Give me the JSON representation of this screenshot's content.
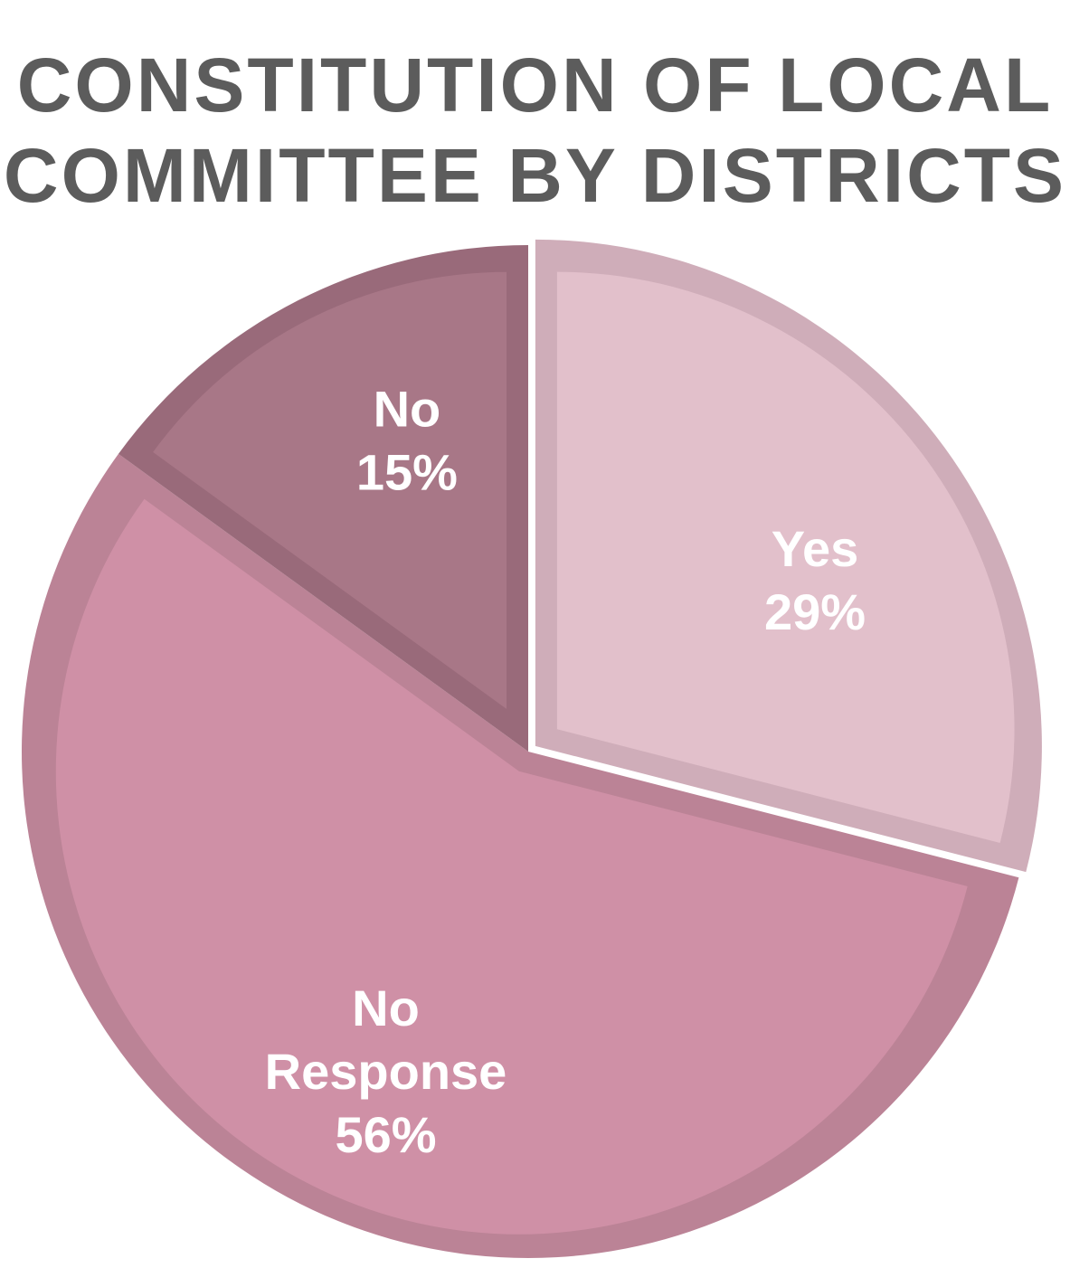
{
  "chart_data": {
    "type": "pie",
    "title": [
      "CONSTITUTION OF LOCAL",
      "COMMITTEE BY DISTRICTS"
    ],
    "slices": [
      {
        "label_lines": [
          "Yes"
        ],
        "value": 29,
        "value_label": "29%",
        "fill": "#e2c0cb",
        "stroke": "#cfadb9"
      },
      {
        "label_lines": [
          "No",
          "Response"
        ],
        "value": 56,
        "value_label": "56%",
        "fill": "#cf90a6",
        "stroke": "#bb8396"
      },
      {
        "label_lines": [
          "No"
        ],
        "value": 15,
        "value_label": "15%",
        "fill": "#a87787",
        "stroke": "#996a7a"
      }
    ],
    "start": "12 o'clock",
    "direction": "clockwise",
    "legend": "none"
  }
}
